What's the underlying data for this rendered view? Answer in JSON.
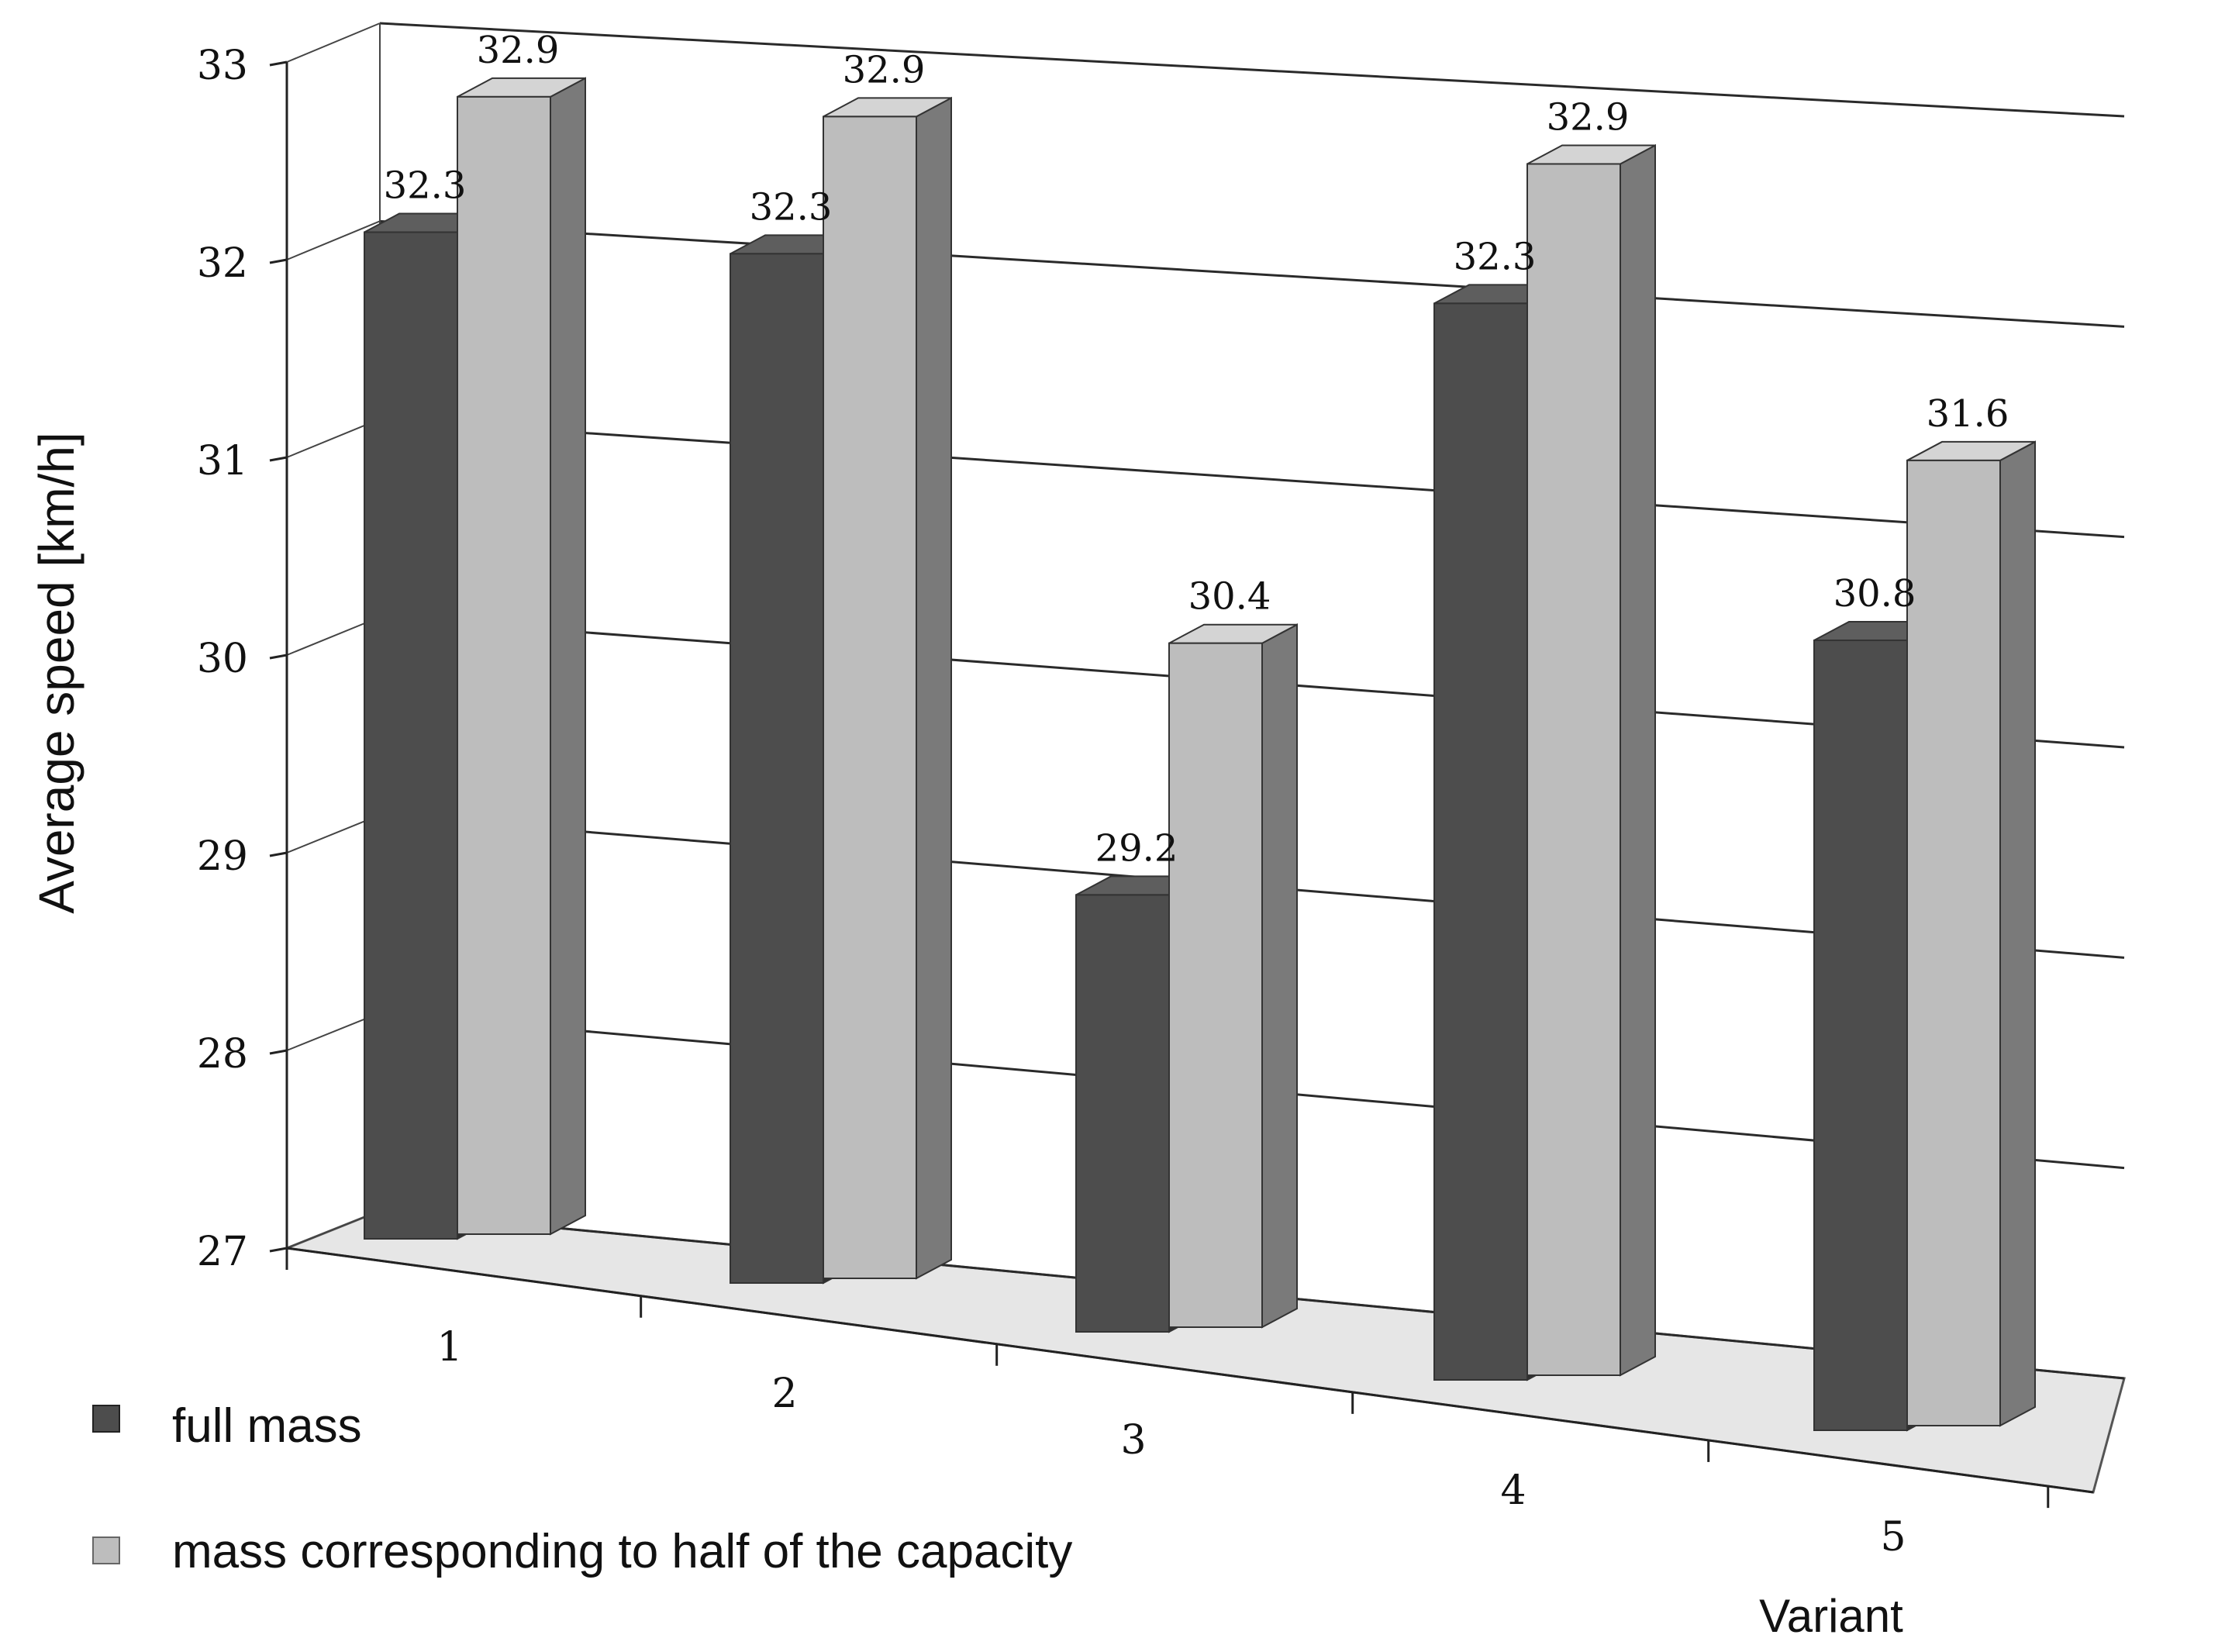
{
  "chart_data": {
    "type": "bar",
    "title": "",
    "xlabel": "Variant",
    "ylabel": "Average speed [km/h]",
    "ylim": [
      27,
      33
    ],
    "yticks": [
      "27",
      "28",
      "29",
      "30",
      "31",
      "32",
      "33"
    ],
    "categories": [
      "1",
      "2",
      "3",
      "4",
      "5"
    ],
    "series": [
      {
        "name": "full mass",
        "color": "#4d4d4d",
        "values": [
          32.3,
          32.3,
          29.2,
          32.3,
          30.8
        ],
        "labels": [
          "32.3",
          "32.3",
          "29.2",
          "32.3",
          "30.8"
        ]
      },
      {
        "name": "mass corresponding to half of the capacity",
        "color": "#bdbdbd",
        "values": [
          32.9,
          32.9,
          30.4,
          32.9,
          31.6
        ],
        "labels": [
          "32.9",
          "32.9",
          "30.4",
          "32.9",
          "31.6"
        ]
      }
    ],
    "grid": true,
    "legend": "bottom-left",
    "style": "3d-perspective"
  }
}
